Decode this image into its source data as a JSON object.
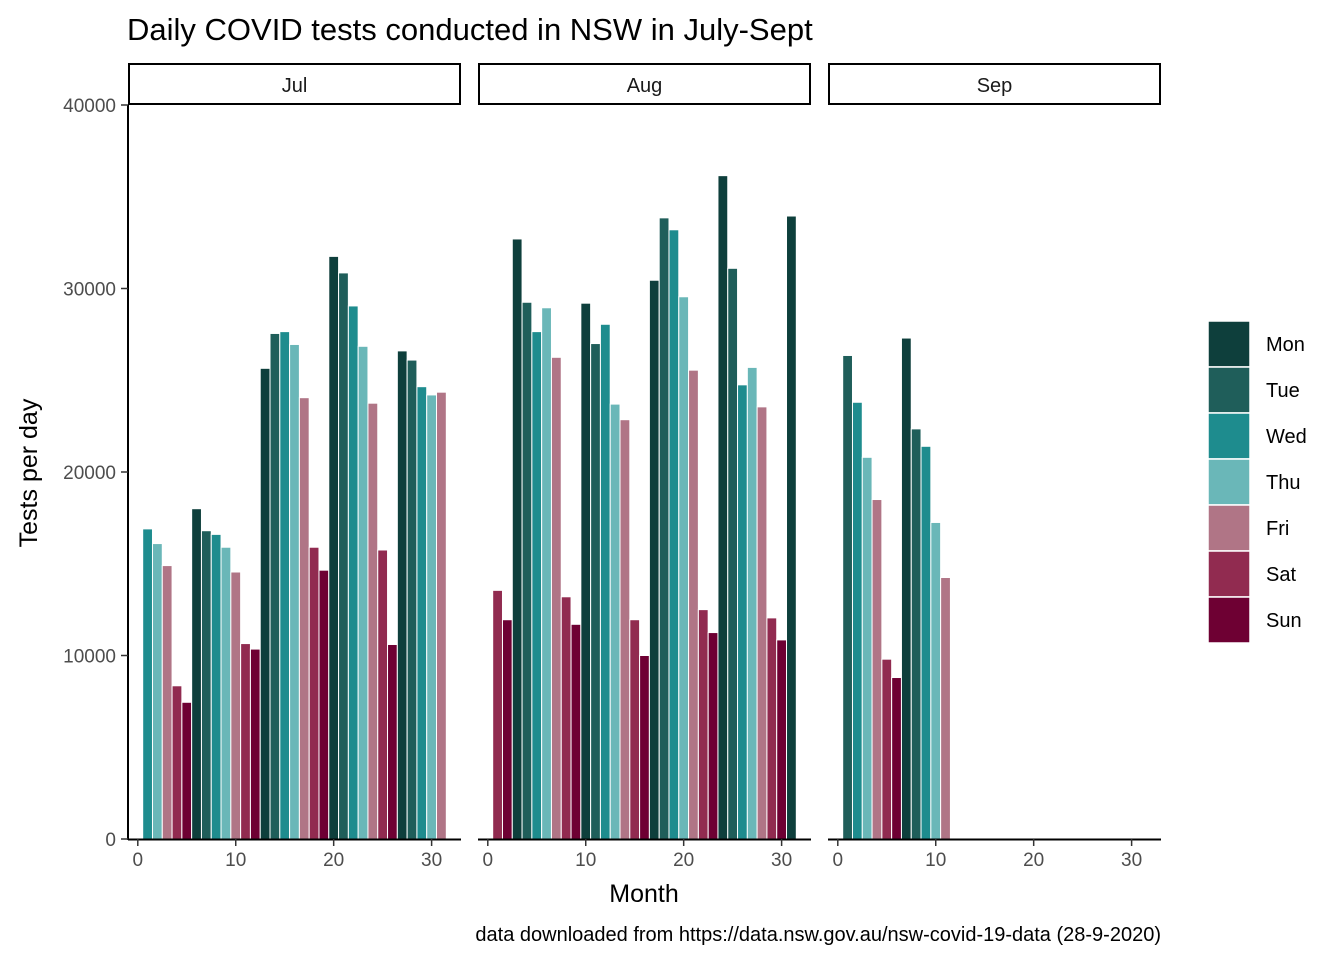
{
  "chart_data": {
    "type": "bar",
    "title": "Daily COVID tests conducted in NSW in July-Sept",
    "xlabel": "Month",
    "ylabel": "Tests per day",
    "caption": "data downloaded from https://data.nsw.gov.au/nsw-covid-19-data (28-9-2020)",
    "xlim": [
      -1,
      33
    ],
    "ylim": [
      0,
      40000
    ],
    "x_ticks": [
      0,
      10,
      20,
      30
    ],
    "y_ticks": [
      0,
      10000,
      20000,
      30000,
      40000
    ],
    "legend_position": "right",
    "grid": false,
    "weekdays": [
      {
        "name": "Mon",
        "color": "#0e3f3c"
      },
      {
        "name": "Tue",
        "color": "#1f5e5a"
      },
      {
        "name": "Wed",
        "color": "#1e8c8e"
      },
      {
        "name": "Thu",
        "color": "#6ab7b8"
      },
      {
        "name": "Fri",
        "color": "#b07586"
      },
      {
        "name": "Sat",
        "color": "#912b50"
      },
      {
        "name": "Sun",
        "color": "#6e0033"
      }
    ],
    "panels": [
      {
        "label": "Jul",
        "bars": [
          {
            "day": 1,
            "weekday": "Wed",
            "value": 16900
          },
          {
            "day": 2,
            "weekday": "Thu",
            "value": 16100
          },
          {
            "day": 3,
            "weekday": "Fri",
            "value": 14900
          },
          {
            "day": 4,
            "weekday": "Sat",
            "value": 8350
          },
          {
            "day": 5,
            "weekday": "Sun",
            "value": 7450
          },
          {
            "day": 6,
            "weekday": "Mon",
            "value": 18000
          },
          {
            "day": 7,
            "weekday": "Tue",
            "value": 16800
          },
          {
            "day": 8,
            "weekday": "Wed",
            "value": 16600
          },
          {
            "day": 9,
            "weekday": "Thu",
            "value": 15900
          },
          {
            "day": 10,
            "weekday": "Fri",
            "value": 14550
          },
          {
            "day": 11,
            "weekday": "Sat",
            "value": 10650
          },
          {
            "day": 12,
            "weekday": "Sun",
            "value": 10350
          },
          {
            "day": 13,
            "weekday": "Mon",
            "value": 25650
          },
          {
            "day": 14,
            "weekday": "Tue",
            "value": 27550
          },
          {
            "day": 15,
            "weekday": "Wed",
            "value": 27650
          },
          {
            "day": 16,
            "weekday": "Thu",
            "value": 26950
          },
          {
            "day": 17,
            "weekday": "Fri",
            "value": 24050
          },
          {
            "day": 18,
            "weekday": "Sat",
            "value": 15900
          },
          {
            "day": 19,
            "weekday": "Sun",
            "value": 14650
          },
          {
            "day": 20,
            "weekday": "Mon",
            "value": 31750
          },
          {
            "day": 21,
            "weekday": "Tue",
            "value": 30850
          },
          {
            "day": 22,
            "weekday": "Wed",
            "value": 29050
          },
          {
            "day": 23,
            "weekday": "Thu",
            "value": 26850
          },
          {
            "day": 24,
            "weekday": "Fri",
            "value": 23750
          },
          {
            "day": 25,
            "weekday": "Sat",
            "value": 15750
          },
          {
            "day": 26,
            "weekday": "Sun",
            "value": 10600
          },
          {
            "day": 27,
            "weekday": "Mon",
            "value": 26600
          },
          {
            "day": 28,
            "weekday": "Tue",
            "value": 26100
          },
          {
            "day": 29,
            "weekday": "Wed",
            "value": 24650
          },
          {
            "day": 30,
            "weekday": "Thu",
            "value": 24200
          },
          {
            "day": 31,
            "weekday": "Fri",
            "value": 24350
          }
        ]
      },
      {
        "label": "Aug",
        "bars": [
          {
            "day": 1,
            "weekday": "Sat",
            "value": 13550
          },
          {
            "day": 2,
            "weekday": "Sun",
            "value": 11950
          },
          {
            "day": 3,
            "weekday": "Mon",
            "value": 32700
          },
          {
            "day": 4,
            "weekday": "Tue",
            "value": 29250
          },
          {
            "day": 5,
            "weekday": "Wed",
            "value": 27650
          },
          {
            "day": 6,
            "weekday": "Thu",
            "value": 28950
          },
          {
            "day": 7,
            "weekday": "Fri",
            "value": 26250
          },
          {
            "day": 8,
            "weekday": "Sat",
            "value": 13200
          },
          {
            "day": 9,
            "weekday": "Sun",
            "value": 11700
          },
          {
            "day": 10,
            "weekday": "Mon",
            "value": 29200
          },
          {
            "day": 11,
            "weekday": "Tue",
            "value": 27000
          },
          {
            "day": 12,
            "weekday": "Wed",
            "value": 28050
          },
          {
            "day": 13,
            "weekday": "Thu",
            "value": 23700
          },
          {
            "day": 14,
            "weekday": "Fri",
            "value": 22850
          },
          {
            "day": 15,
            "weekday": "Sat",
            "value": 11950
          },
          {
            "day": 16,
            "weekday": "Sun",
            "value": 10000
          },
          {
            "day": 17,
            "weekday": "Mon",
            "value": 30450
          },
          {
            "day": 18,
            "weekday": "Tue",
            "value": 33850
          },
          {
            "day": 19,
            "weekday": "Wed",
            "value": 33200
          },
          {
            "day": 20,
            "weekday": "Thu",
            "value": 29550
          },
          {
            "day": 21,
            "weekday": "Fri",
            "value": 25550
          },
          {
            "day": 22,
            "weekday": "Sat",
            "value": 12500
          },
          {
            "day": 23,
            "weekday": "Sun",
            "value": 11250
          },
          {
            "day": 24,
            "weekday": "Mon",
            "value": 36150
          },
          {
            "day": 25,
            "weekday": "Tue",
            "value": 31100
          },
          {
            "day": 26,
            "weekday": "Wed",
            "value": 24750
          },
          {
            "day": 27,
            "weekday": "Thu",
            "value": 25700
          },
          {
            "day": 28,
            "weekday": "Fri",
            "value": 23550
          },
          {
            "day": 29,
            "weekday": "Sat",
            "value": 12050
          },
          {
            "day": 30,
            "weekday": "Sun",
            "value": 10850
          },
          {
            "day": 31,
            "weekday": "Mon",
            "value": 33950
          }
        ]
      },
      {
        "label": "Sep",
        "bars": [
          {
            "day": 1,
            "weekday": "Tue",
            "value": 26350
          },
          {
            "day": 2,
            "weekday": "Wed",
            "value": 23800
          },
          {
            "day": 3,
            "weekday": "Thu",
            "value": 20800
          },
          {
            "day": 4,
            "weekday": "Fri",
            "value": 18500
          },
          {
            "day": 5,
            "weekday": "Sat",
            "value": 9800
          },
          {
            "day": 6,
            "weekday": "Sun",
            "value": 8800
          },
          {
            "day": 7,
            "weekday": "Mon",
            "value": 27300
          },
          {
            "day": 8,
            "weekday": "Tue",
            "value": 22350
          },
          {
            "day": 9,
            "weekday": "Wed",
            "value": 21400
          },
          {
            "day": 10,
            "weekday": "Thu",
            "value": 17250
          },
          {
            "day": 11,
            "weekday": "Fri",
            "value": 14250
          }
        ]
      }
    ]
  }
}
